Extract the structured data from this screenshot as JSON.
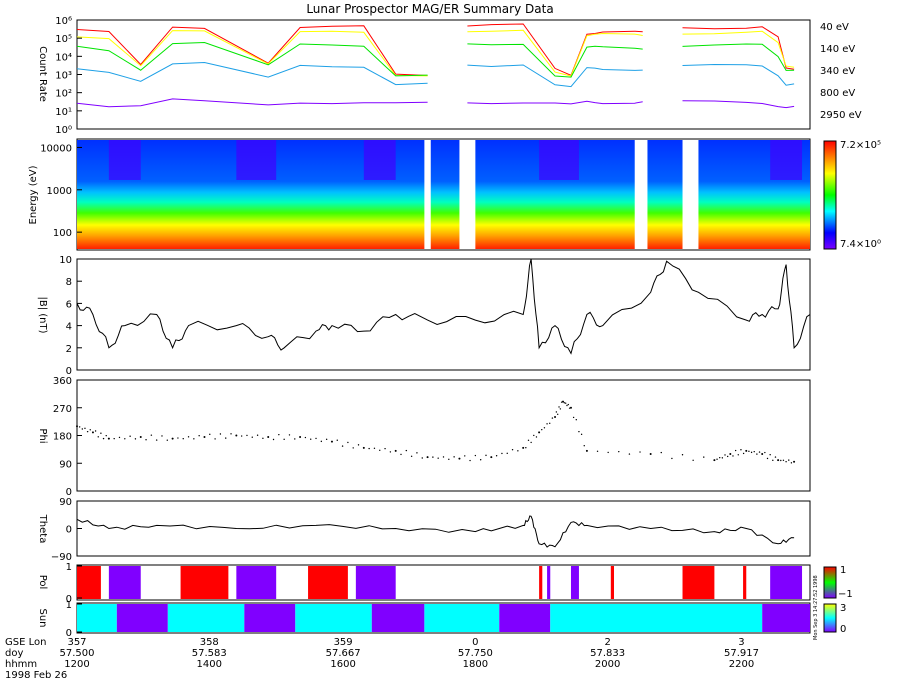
{
  "title": "Lunar Prospector MAG/ER Summary Data",
  "date_label": "1998 Feb 26",
  "side_annotation": "Mon Sep 3 14:27:52 1998",
  "x_axis": {
    "row_labels": [
      "GSE Lon",
      "doy",
      "hhmm"
    ],
    "ticks": [
      {
        "lon": "357",
        "doy": "57.500",
        "hhmm": "1200"
      },
      {
        "lon": "358",
        "doy": "57.583",
        "hhmm": "1400"
      },
      {
        "lon": "359",
        "doy": "57.667",
        "hhmm": "1600"
      },
      {
        "lon": "0",
        "doy": "57.750",
        "hhmm": "1800"
      },
      {
        "lon": "2",
        "doy": "57.833",
        "hhmm": "2000"
      },
      {
        "lon": "3",
        "doy": "57.917",
        "hhmm": "2200"
      }
    ]
  },
  "colors": {
    "red": "#ff0000",
    "yellow": "#ffff00",
    "green": "#00e400",
    "blue": "#1ea0e6",
    "purple": "#8000ff",
    "cyan": "#00ffff"
  },
  "chart_data": [
    {
      "id": "count-rate",
      "type": "line",
      "ylabel": "Count Rate",
      "yscale": "log",
      "ylim": [
        1,
        1000000
      ],
      "ytick_labels": [
        "10⁰",
        "10¹",
        "10²",
        "10³",
        "10⁴",
        "10⁵",
        "10⁶"
      ],
      "x": [
        57.5,
        57.52,
        57.54,
        57.56,
        57.58,
        57.62,
        57.64,
        57.66,
        57.68,
        57.7,
        57.72,
        57.73,
        57.745,
        57.76,
        57.78,
        57.8,
        57.81,
        57.82,
        57.825,
        57.83,
        57.85,
        57.855,
        57.88,
        57.9,
        57.92,
        57.93,
        57.94,
        57.945,
        57.95
      ],
      "gaps_after": [
        57.72,
        57.73,
        57.855
      ],
      "series": [
        {
          "name": "40 eV",
          "color": "#ff0000",
          "values": [
            300000,
            200000,
            3000,
            400000,
            400000,
            5000,
            400000,
            400000,
            400000,
            1000,
            1000,
            500000,
            500000,
            500000,
            500000,
            2000,
            1000,
            200000,
            200000,
            200000,
            200000,
            200000,
            400000,
            400000,
            400000,
            400000,
            100000,
            2000,
            2000
          ]
        },
        {
          "name": "140 eV",
          "color": "#ffff00",
          "values": [
            100000,
            80000,
            3000,
            300000,
            300000,
            4000,
            200000,
            200000,
            200000,
            1000,
            1000,
            200000,
            200000,
            200000,
            250000,
            1500,
            1000,
            150000,
            150000,
            150000,
            150000,
            150000,
            200000,
            200000,
            200000,
            200000,
            50000,
            3000,
            3000
          ]
        },
        {
          "name": "340 eV",
          "color": "#00e400",
          "values": [
            30000,
            20000,
            2000,
            60000,
            60000,
            3000,
            40000,
            40000,
            40000,
            1000,
            1000,
            40000,
            40000,
            40000,
            50000,
            1000,
            800,
            30000,
            30000,
            30000,
            30000,
            30000,
            40000,
            40000,
            40000,
            40000,
            10000,
            2000,
            2000
          ]
        },
        {
          "name": "800 eV",
          "color": "#1ea0e6",
          "values": [
            2000,
            1500,
            500,
            4000,
            4000,
            600,
            3000,
            3000,
            3000,
            300,
            300,
            3000,
            3000,
            3000,
            4000,
            300,
            200,
            2000,
            2000,
            2000,
            2000,
            2000,
            3000,
            3000,
            3000,
            3000,
            1000,
            300,
            300
          ]
        },
        {
          "name": "2950 eV",
          "color": "#8000ff",
          "values": [
            30,
            20,
            20,
            40,
            30,
            20,
            30,
            30,
            30,
            25,
            25,
            30,
            30,
            30,
            30,
            25,
            20,
            30,
            30,
            30,
            30,
            30,
            30,
            30,
            30,
            30,
            20,
            15,
            15
          ]
        }
      ]
    },
    {
      "id": "energy-spectrogram",
      "type": "heatmap",
      "ylabel": "Energy (eV)",
      "yscale": "log",
      "ylim": [
        40,
        15000
      ],
      "ytick_labels": [
        "100",
        "1000",
        "10000"
      ],
      "colorbar_labels": [
        "7.2×10⁵",
        "7.4×10⁰"
      ],
      "xlim": [
        57.5,
        57.95
      ]
    },
    {
      "id": "b-magnitude",
      "type": "line",
      "ylabel": "|B| (nT)",
      "ylim": [
        0,
        10
      ],
      "ytick_labels": [
        "0",
        "2",
        "4",
        "6",
        "8",
        "10"
      ],
      "x": [
        57.5,
        57.51,
        57.52,
        57.53,
        57.55,
        57.56,
        57.57,
        57.6,
        57.62,
        57.63,
        57.65,
        57.66,
        57.68,
        57.7,
        57.72,
        57.75,
        57.78,
        57.785,
        57.79,
        57.8,
        57.81,
        57.82,
        57.83,
        57.86,
        57.87,
        57.89,
        57.92,
        57.93,
        57.94,
        57.945,
        57.95,
        57.96
      ],
      "values": [
        6,
        5,
        2,
        4,
        5,
        2,
        4,
        4,
        3,
        2,
        3.5,
        4,
        3.5,
        5,
        4.5,
        4.5,
        5,
        10,
        2,
        4,
        1.5,
        5,
        4,
        7,
        9.8,
        7,
        4.5,
        5,
        5.5,
        9.5,
        2,
        5
      ]
    },
    {
      "id": "phi",
      "type": "scatter",
      "ylabel": "Phi",
      "ylim": [
        0,
        360
      ],
      "ytick_labels": [
        "0",
        "90",
        "180",
        "270",
        "360"
      ],
      "x": [
        57.5,
        57.51,
        57.52,
        57.54,
        57.56,
        57.58,
        57.6,
        57.62,
        57.64,
        57.66,
        57.68,
        57.7,
        57.72,
        57.74,
        57.76,
        57.78,
        57.79,
        57.8,
        57.805,
        57.81,
        57.82,
        57.86,
        57.9,
        57.91,
        57.92,
        57.93,
        57.94,
        57.95
      ],
      "values": [
        210,
        190,
        170,
        175,
        170,
        175,
        180,
        175,
        175,
        160,
        140,
        130,
        110,
        105,
        110,
        140,
        190,
        240,
        290,
        270,
        130,
        120,
        100,
        120,
        130,
        120,
        100,
        95
      ]
    },
    {
      "id": "theta",
      "type": "line",
      "ylabel": "Theta",
      "ylim": [
        -90,
        90
      ],
      "ytick_labels": [
        "−90",
        "0",
        "90"
      ],
      "x": [
        57.5,
        57.52,
        57.55,
        57.6,
        57.65,
        57.7,
        57.75,
        57.78,
        57.785,
        57.79,
        57.8,
        57.81,
        57.82,
        57.86,
        57.9,
        57.92,
        57.94,
        57.95
      ],
      "values": [
        30,
        0,
        10,
        0,
        10,
        0,
        -10,
        10,
        40,
        -50,
        -60,
        20,
        10,
        0,
        -10,
        0,
        -50,
        -30
      ]
    },
    {
      "id": "pol",
      "type": "heatmap",
      "ylabel": "Pol",
      "ytick_labels": [
        "0",
        "1"
      ],
      "colorbar_labels": [
        "1",
        "−1"
      ],
      "segments": [
        {
          "from": 57.5,
          "to": 57.515,
          "color": "#ff0000"
        },
        {
          "from": 57.52,
          "to": 57.54,
          "color": "#8000ff"
        },
        {
          "from": 57.565,
          "to": 57.595,
          "color": "#ff0000"
        },
        {
          "from": 57.6,
          "to": 57.625,
          "color": "#8000ff"
        },
        {
          "from": 57.645,
          "to": 57.67,
          "color": "#ff0000"
        },
        {
          "from": 57.675,
          "to": 57.7,
          "color": "#8000ff"
        },
        {
          "from": 57.79,
          "to": 57.792,
          "color": "#ff0000"
        },
        {
          "from": 57.795,
          "to": 57.797,
          "color": "#8000ff"
        },
        {
          "from": 57.81,
          "to": 57.815,
          "color": "#8000ff"
        },
        {
          "from": 57.835,
          "to": 57.837,
          "color": "#ff0000"
        },
        {
          "from": 57.88,
          "to": 57.9,
          "color": "#ff0000"
        },
        {
          "from": 57.918,
          "to": 57.92,
          "color": "#ff0000"
        },
        {
          "from": 57.935,
          "to": 57.955,
          "color": "#8000ff"
        }
      ]
    },
    {
      "id": "sun",
      "type": "heatmap",
      "ylabel": "Sun",
      "ytick_labels": [
        "0",
        "1"
      ],
      "colorbar_labels": [
        "3",
        "0"
      ],
      "segments": [
        {
          "from": 57.5,
          "to": 57.525,
          "color": "#00ffff"
        },
        {
          "from": 57.525,
          "to": 57.557,
          "color": "#8000ff"
        },
        {
          "from": 57.557,
          "to": 57.605,
          "color": "#00ffff"
        },
        {
          "from": 57.605,
          "to": 57.637,
          "color": "#8000ff"
        },
        {
          "from": 57.637,
          "to": 57.685,
          "color": "#00ffff"
        },
        {
          "from": 57.685,
          "to": 57.718,
          "color": "#8000ff"
        },
        {
          "from": 57.718,
          "to": 57.765,
          "color": "#00ffff"
        },
        {
          "from": 57.765,
          "to": 57.797,
          "color": "#8000ff"
        },
        {
          "from": 57.797,
          "to": 57.93,
          "color": "#00ffff"
        },
        {
          "from": 57.93,
          "to": 57.96,
          "color": "#8000ff"
        }
      ]
    }
  ]
}
